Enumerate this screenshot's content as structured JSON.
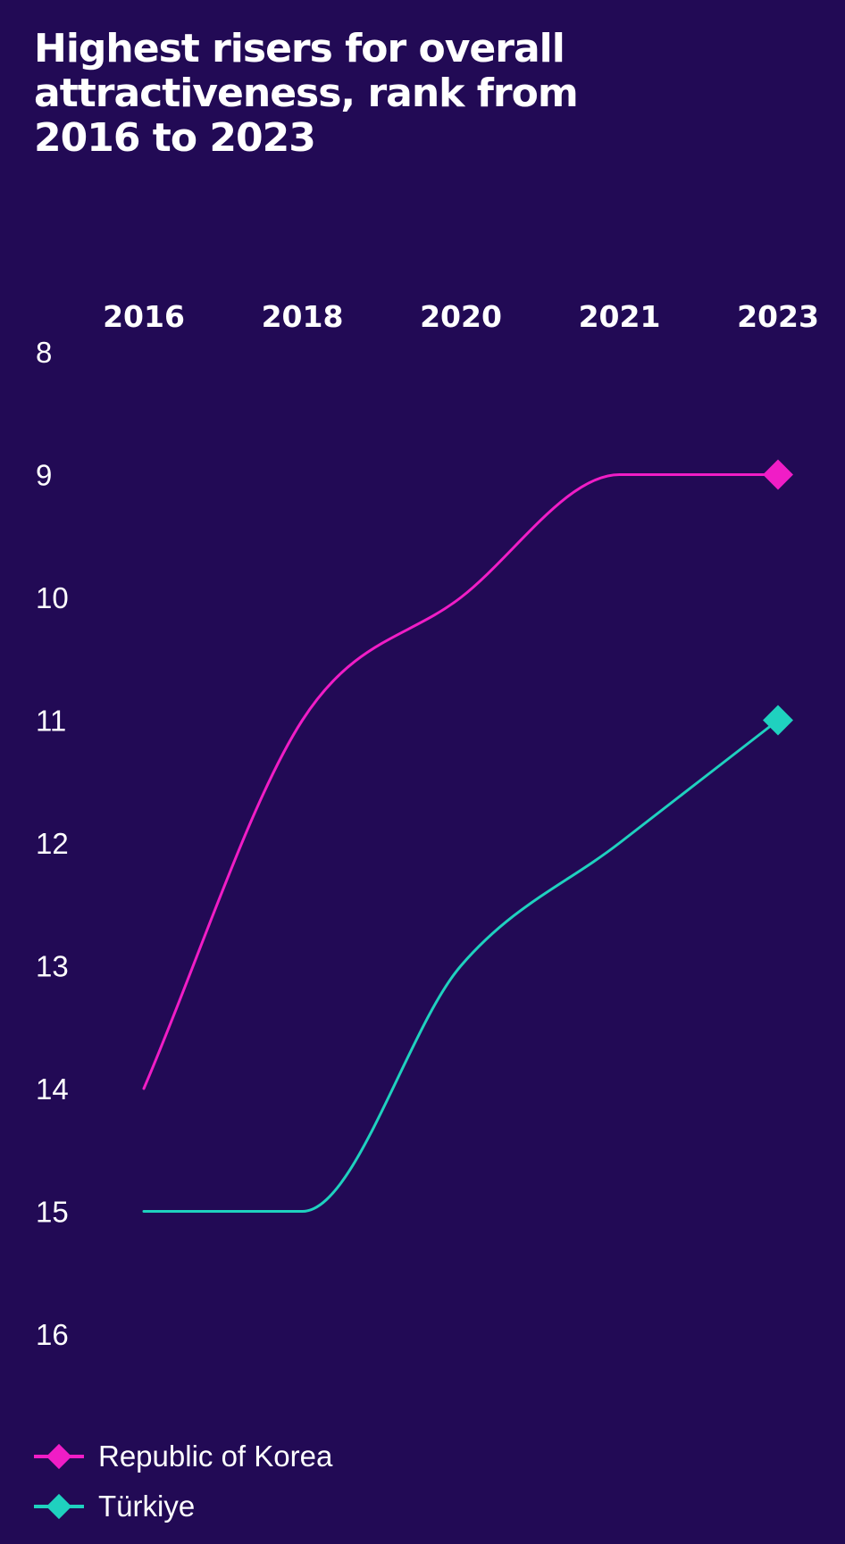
{
  "chart_data": {
    "type": "line",
    "title": "Highest risers for overall attractiveness, rank from 2016 to 2023",
    "categories": [
      "2016",
      "2018",
      "2020",
      "2021",
      "2023"
    ],
    "y_ticks": [
      "8",
      "9",
      "10",
      "11",
      "12",
      "13",
      "14",
      "15",
      "16"
    ],
    "ylim": [
      8,
      16
    ],
    "y_inverted": true,
    "grid": false,
    "legend_position": "bottom-left",
    "series": [
      {
        "name": "Republic of Korea",
        "values": [
          14,
          11,
          10,
          9,
          9
        ],
        "color": "#f01dc6",
        "end_marker": "diamond"
      },
      {
        "name": "Türkiye",
        "values": [
          15,
          15,
          13,
          12,
          11
        ],
        "color": "#1fd1bf",
        "end_marker": "diamond"
      }
    ]
  }
}
